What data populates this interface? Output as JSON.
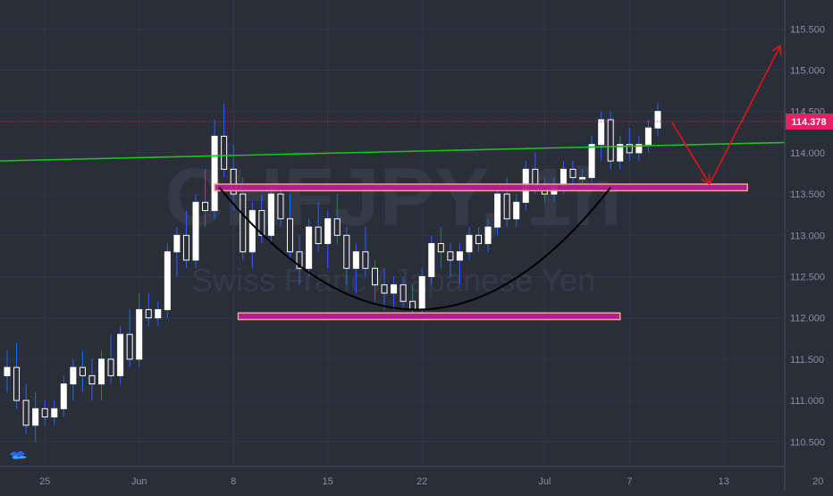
{
  "chart_data": {
    "type": "candlestick",
    "watermark": {
      "symbol": "CHFJPY, 1h",
      "name": "Swiss Franc / Japanese Yen"
    },
    "ylim": [
      110.2,
      115.85
    ],
    "y_ticks": [
      "110.500",
      "111.000",
      "111.500",
      "112.000",
      "112.500",
      "113.000",
      "113.500",
      "114.000",
      "114.500",
      "115.000",
      "115.500"
    ],
    "y_tick_values": [
      110.5,
      111.0,
      111.5,
      112.0,
      112.5,
      113.0,
      113.5,
      114.0,
      114.5,
      115.0,
      115.5
    ],
    "x_ticks": [
      {
        "label": "25",
        "idx": 4
      },
      {
        "label": "Jun",
        "idx": 14
      },
      {
        "label": "8",
        "idx": 24
      },
      {
        "label": "15",
        "idx": 34
      },
      {
        "label": "22",
        "idx": 44
      },
      {
        "label": "Jul",
        "idx": 57
      },
      {
        "label": "7",
        "idx": 66
      },
      {
        "label": "13",
        "idx": 76
      },
      {
        "label": "20",
        "idx": 86
      }
    ],
    "current_price": {
      "value": 114.378,
      "label": "114.378",
      "color": "#e91e63"
    },
    "candle_colors": {
      "up": "#ffffff",
      "down": "#ffffff",
      "wick": "#2962ff"
    },
    "candles": [
      [
        111.3,
        111.6,
        111.1,
        111.4
      ],
      [
        111.4,
        111.7,
        110.9,
        111.0
      ],
      [
        111.0,
        111.2,
        110.6,
        110.7
      ],
      [
        110.7,
        111.1,
        110.5,
        110.9
      ],
      [
        110.9,
        111.0,
        110.7,
        110.8
      ],
      [
        110.8,
        111.0,
        110.7,
        110.9
      ],
      [
        110.9,
        111.3,
        110.8,
        111.2
      ],
      [
        111.2,
        111.5,
        111.0,
        111.4
      ],
      [
        111.4,
        111.6,
        111.1,
        111.3
      ],
      [
        111.3,
        111.5,
        111.0,
        111.2
      ],
      [
        111.2,
        111.6,
        111.0,
        111.5
      ],
      [
        111.5,
        111.8,
        111.2,
        111.3
      ],
      [
        111.3,
        111.9,
        111.2,
        111.8
      ],
      [
        111.8,
        112.1,
        111.4,
        111.5
      ],
      [
        111.5,
        112.3,
        111.4,
        112.1
      ],
      [
        112.1,
        112.3,
        111.9,
        112.0
      ],
      [
        112.0,
        112.2,
        111.9,
        112.1
      ],
      [
        112.1,
        112.9,
        112.0,
        112.8
      ],
      [
        112.8,
        113.1,
        112.5,
        113.0
      ],
      [
        113.0,
        113.3,
        112.6,
        112.7
      ],
      [
        112.7,
        113.5,
        112.6,
        113.4
      ],
      [
        113.4,
        113.8,
        113.1,
        113.3
      ],
      [
        113.3,
        114.4,
        113.2,
        114.2
      ],
      [
        114.2,
        114.6,
        113.7,
        113.8
      ],
      [
        113.8,
        114.1,
        113.3,
        113.5
      ],
      [
        113.5,
        113.7,
        112.7,
        112.8
      ],
      [
        112.8,
        113.4,
        112.6,
        113.3
      ],
      [
        113.3,
        113.5,
        112.9,
        113.0
      ],
      [
        113.0,
        113.6,
        112.9,
        113.5
      ],
      [
        113.5,
        113.6,
        113.1,
        113.2
      ],
      [
        113.2,
        113.5,
        112.7,
        112.8
      ],
      [
        112.8,
        113.0,
        112.4,
        112.6
      ],
      [
        112.6,
        113.2,
        112.5,
        113.1
      ],
      [
        113.1,
        113.4,
        112.8,
        112.9
      ],
      [
        112.9,
        113.3,
        112.6,
        113.2
      ],
      [
        113.2,
        113.5,
        112.9,
        113.0
      ],
      [
        113.0,
        113.1,
        112.4,
        112.6
      ],
      [
        112.6,
        112.9,
        112.3,
        112.8
      ],
      [
        112.8,
        113.1,
        112.5,
        112.6
      ],
      [
        112.6,
        112.7,
        112.2,
        112.4
      ],
      [
        112.4,
        112.6,
        112.1,
        112.3
      ],
      [
        112.3,
        112.5,
        112.1,
        112.4
      ],
      [
        112.4,
        112.5,
        112.1,
        112.2
      ],
      [
        112.2,
        112.4,
        112.0,
        112.1
      ],
      [
        112.1,
        112.6,
        112.0,
        112.5
      ],
      [
        112.5,
        113.0,
        112.4,
        112.9
      ],
      [
        112.9,
        113.1,
        112.6,
        112.8
      ],
      [
        112.8,
        112.9,
        112.5,
        112.7
      ],
      [
        112.7,
        112.9,
        112.4,
        112.8
      ],
      [
        112.8,
        113.1,
        112.7,
        113.0
      ],
      [
        113.0,
        113.1,
        112.8,
        112.9
      ],
      [
        112.9,
        113.2,
        112.8,
        113.1
      ],
      [
        113.1,
        113.6,
        113.0,
        113.5
      ],
      [
        113.5,
        113.7,
        113.1,
        113.2
      ],
      [
        113.2,
        113.5,
        113.1,
        113.4
      ],
      [
        113.4,
        113.9,
        113.3,
        113.8
      ],
      [
        113.8,
        114.0,
        113.5,
        113.6
      ],
      [
        113.6,
        113.7,
        113.4,
        113.5
      ],
      [
        113.5,
        113.7,
        113.4,
        113.6
      ],
      [
        113.6,
        113.9,
        113.5,
        113.8
      ],
      [
        113.8,
        113.9,
        113.6,
        113.7
      ],
      [
        113.7,
        113.8,
        113.6,
        113.7
      ],
      [
        113.7,
        114.2,
        113.6,
        114.1
      ],
      [
        114.1,
        114.5,
        113.9,
        114.4
      ],
      [
        114.4,
        114.5,
        113.8,
        113.9
      ],
      [
        113.9,
        114.2,
        113.8,
        114.1
      ],
      [
        114.1,
        114.3,
        113.9,
        114.0
      ],
      [
        114.0,
        114.2,
        113.9,
        114.1
      ],
      [
        114.1,
        114.4,
        114.0,
        114.3
      ],
      [
        114.3,
        114.6,
        114.2,
        114.5
      ]
    ],
    "annotations": {
      "trendline": {
        "from": [
          -1,
          113.9
        ],
        "to": [
          92,
          114.15
        ],
        "color": "#18c418"
      },
      "resistance_box": {
        "from": [
          22,
          113.62
        ],
        "to": [
          78.5,
          113.54
        ],
        "fill": "#b71c9e",
        "border": "#f3a28c"
      },
      "support_box": {
        "from": [
          24.5,
          112.06
        ],
        "to": [
          65,
          111.98
        ],
        "fill": "#b71c9e",
        "border": "#f3a28c"
      },
      "cup_arc": {
        "from": [
          22.5,
          113.58
        ],
        "bottom": [
          43.5,
          112.1
        ],
        "to": [
          64,
          113.58
        ],
        "color": "#000000"
      },
      "arrow_down": {
        "from": [
          70.5,
          114.37
        ],
        "to": [
          74.5,
          113.62
        ],
        "color": "#e0131a"
      },
      "arrow_up": {
        "from": [
          74.5,
          113.62
        ],
        "to": [
          82,
          115.3
        ],
        "color": "#e0131a"
      }
    },
    "logo_icon": "tradingview-cloud-icon"
  }
}
